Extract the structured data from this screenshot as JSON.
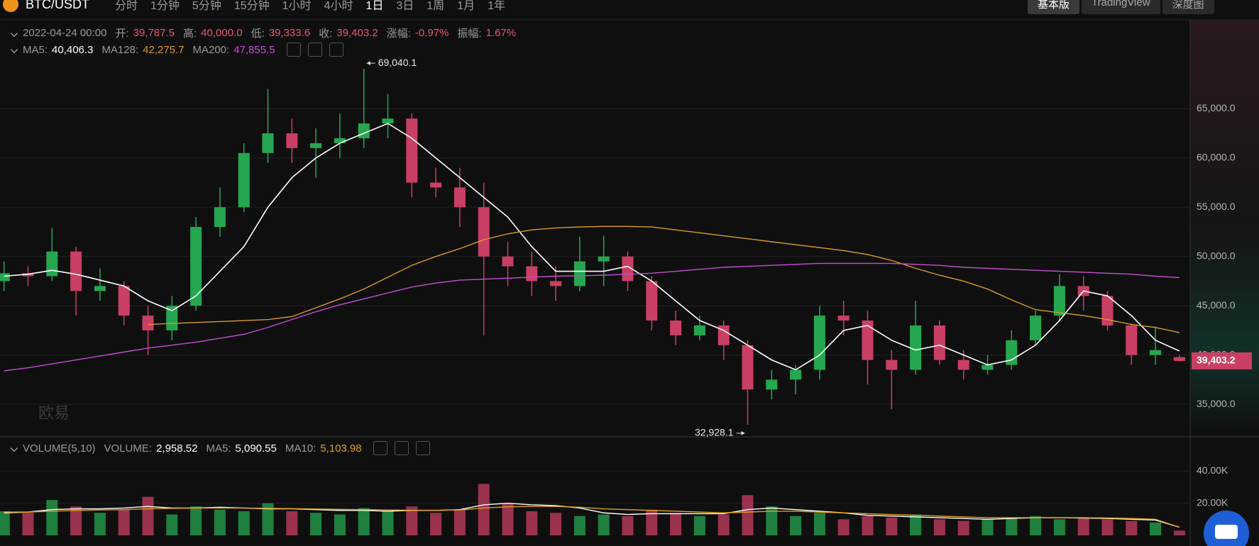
{
  "toolbar": {
    "symbol": "BTC/USDT",
    "intervals": [
      "分时",
      "1分钟",
      "5分钟",
      "15分钟",
      "1小时",
      "4小时",
      "1日",
      "3日",
      "1周",
      "1月",
      "1年"
    ],
    "views": [
      "基本版",
      "TradingView",
      "深度图"
    ]
  },
  "header": {
    "datetime": "2022-04-24 00:00",
    "fields": [
      {
        "label": "开:",
        "value": "39,787.5"
      },
      {
        "label": "高:",
        "value": "40,000.0"
      },
      {
        "label": "低:",
        "value": "39,333.6"
      },
      {
        "label": "收:",
        "value": "39,403.2"
      },
      {
        "label": "涨幅:",
        "value": "-0.97%"
      },
      {
        "label": "振幅:",
        "value": "1.67%"
      }
    ]
  },
  "watermark": "欧易",
  "chart_data": [
    {
      "type": "candlestick",
      "up_color": "#25a750",
      "down_color": "#ca3f64",
      "grid": true,
      "ylim": [
        31700,
        73800
      ],
      "yticks": [
        {
          "value": 35000,
          "label": "35,000.0"
        },
        {
          "value": 40000,
          "label": "40,000.0"
        },
        {
          "value": 45000,
          "label": "45,000.0"
        },
        {
          "value": 50000,
          "label": "50,000.0"
        },
        {
          "value": 55000,
          "label": "55,000.0"
        },
        {
          "value": 60000,
          "label": "60,000.0"
        },
        {
          "value": 65000,
          "label": "65,000.0"
        }
      ],
      "open": [
        47500,
        48300,
        48000,
        50500,
        46500,
        47000,
        44000,
        42500,
        45000,
        53000,
        55000,
        60500,
        62500,
        61000,
        61500,
        62000,
        63500,
        64000,
        57500,
        57000,
        55000,
        50000,
        49000,
        47500,
        47000,
        49500,
        50000,
        47500,
        43500,
        42000,
        43000,
        41000,
        36500,
        37500,
        38500,
        44000,
        43500,
        39500,
        38500,
        43000,
        39500,
        38500,
        39000,
        41500,
        44000,
        47000,
        46000,
        43000,
        40000,
        39787.5
      ],
      "high": [
        49500,
        49000,
        52900,
        51000,
        48800,
        47500,
        45000,
        46000,
        54000,
        57000,
        61500,
        67000,
        64000,
        63000,
        64500,
        69040.1,
        66500,
        64500,
        59000,
        59000,
        57500,
        51500,
        50500,
        49000,
        52000,
        52100,
        50500,
        48000,
        44500,
        44000,
        43500,
        41500,
        38500,
        39000,
        45000,
        45500,
        44500,
        40500,
        45500,
        43500,
        40500,
        40000,
        42500,
        44500,
        48200,
        48000,
        46500,
        43200,
        42900,
        40000
      ],
      "low": [
        46500,
        47000,
        47500,
        44000,
        45500,
        43000,
        40000,
        41500,
        44500,
        52000,
        54500,
        59500,
        59500,
        58000,
        60000,
        61000,
        62000,
        56000,
        56000,
        53000,
        42000,
        47000,
        46000,
        45500,
        46500,
        47000,
        46500,
        42500,
        41000,
        41500,
        39500,
        32928.1,
        35500,
        36000,
        37500,
        42000,
        37000,
        34500,
        38000,
        39000,
        37500,
        38000,
        38500,
        41000,
        43500,
        44500,
        42500,
        39000,
        39000,
        39333.6
      ],
      "close": [
        48300,
        48000,
        50500,
        46500,
        47000,
        44000,
        42500,
        45000,
        53000,
        55000,
        60500,
        62500,
        61000,
        61500,
        62000,
        63500,
        64000,
        57500,
        57000,
        55000,
        50000,
        49000,
        47500,
        47000,
        49500,
        50000,
        47500,
        43500,
        42000,
        43000,
        41000,
        36500,
        37500,
        38500,
        44000,
        43500,
        39500,
        38500,
        43000,
        39500,
        38500,
        39000,
        41500,
        44000,
        47000,
        46000,
        43000,
        40000,
        40500,
        39403.2
      ],
      "series": [
        {
          "name": "MA5:",
          "color": "#ffffff",
          "legend_value": "40,406.3",
          "values": [
            48000,
            48200,
            48600,
            48200,
            47600,
            47000,
            45500,
            44500,
            46000,
            48500,
            51000,
            55000,
            58000,
            60000,
            61500,
            62500,
            63500,
            62000,
            60000,
            58000,
            56000,
            54000,
            51000,
            48500,
            48500,
            48500,
            49000,
            47500,
            45500,
            43500,
            42500,
            41000,
            39500,
            38500,
            40000,
            42500,
            43000,
            41500,
            40500,
            41000,
            40000,
            39000,
            39500,
            41000,
            43500,
            46500,
            46000,
            44000,
            41500,
            40406.3
          ]
        },
        {
          "name": "MA128:",
          "color": "#d99a2b",
          "legend_value": "42,275.7",
          "values": [
            null,
            null,
            null,
            null,
            null,
            null,
            43100,
            43200,
            43300,
            43400,
            43500,
            43600,
            43900,
            44800,
            45700,
            46700,
            47900,
            49100,
            50000,
            50800,
            51700,
            52300,
            52700,
            52900,
            53000,
            53050,
            53050,
            53000,
            52700,
            52400,
            52100,
            51800,
            51500,
            51200,
            50900,
            50600,
            50200,
            49600,
            48800,
            48100,
            47500,
            46700,
            45600,
            44600,
            44300,
            44000,
            43600,
            43100,
            42800,
            42275.7
          ]
        },
        {
          "name": "MA200:",
          "color": "#c34fd1",
          "legend_value": "47,855.5",
          "values": [
            38400,
            38700,
            39100,
            39500,
            39900,
            40300,
            40700,
            41000,
            41300,
            41700,
            42100,
            42800,
            43600,
            44400,
            45100,
            45700,
            46300,
            46900,
            47300,
            47600,
            47700,
            47800,
            47900,
            48000,
            48050,
            48100,
            48200,
            48300,
            48500,
            48700,
            48900,
            49000,
            49100,
            49200,
            49300,
            49300,
            49300,
            49300,
            49200,
            49100,
            48900,
            48800,
            48700,
            48600,
            48500,
            48400,
            48300,
            48200,
            48000,
            47855.5
          ]
        }
      ],
      "annotations": [
        {
          "index": 15,
          "value": 69040.1,
          "label": "69,040.1",
          "side": "right"
        },
        {
          "index": 31,
          "value": 32928.1,
          "label": "32,928.1",
          "side": "left"
        }
      ],
      "last_price": {
        "value": 39403.2,
        "label": "39,403.2"
      }
    },
    {
      "type": "bar",
      "title": "VOLUME(5,10)",
      "ylim": [
        0,
        61300
      ],
      "grid": true,
      "yticks": [
        {
          "value": 20000,
          "label": "20.00K"
        },
        {
          "value": 40000,
          "label": "40.00K"
        }
      ],
      "series": [
        {
          "name": "VOLUME:",
          "kind": "bar",
          "legend_value": "2,958.52",
          "values": [
            15000,
            14000,
            22000,
            18000,
            14000,
            16000,
            24000,
            13000,
            18000,
            16000,
            15000,
            20000,
            15000,
            14000,
            13000,
            17000,
            15000,
            18000,
            14000,
            16000,
            32000,
            20000,
            15000,
            14000,
            12000,
            13000,
            12000,
            16000,
            14000,
            12000,
            13000,
            25000,
            18000,
            12000,
            14000,
            10000,
            12000,
            11000,
            13000,
            10000,
            9000,
            10000,
            11000,
            12000,
            10000,
            11000,
            10000,
            9000,
            8000,
            2958.52
          ]
        },
        {
          "name": "MA5:",
          "kind": "line",
          "color": "#ffffff",
          "legend_value": "5,090.55",
          "values": [
            14000,
            14500,
            16000,
            16500,
            16500,
            17000,
            18000,
            17000,
            17000,
            17500,
            17000,
            16500,
            16500,
            16000,
            15500,
            15500,
            15000,
            15500,
            15500,
            16000,
            19000,
            20000,
            19000,
            18500,
            17000,
            14000,
            13000,
            13500,
            13500,
            13500,
            13500,
            16000,
            17000,
            16000,
            15000,
            14000,
            12500,
            12000,
            11500,
            11000,
            10500,
            10000,
            10500,
            11000,
            11000,
            10800,
            10500,
            10000,
            9500,
            5090.55
          ]
        },
        {
          "name": "MA10:",
          "kind": "line",
          "color": "#e0a020",
          "legend_value": "5,103.98",
          "values": [
            14500,
            14500,
            15000,
            15500,
            15800,
            16000,
            16500,
            16800,
            17000,
            17000,
            17000,
            16800,
            16600,
            16400,
            16200,
            16000,
            15800,
            15600,
            15600,
            15800,
            17000,
            17800,
            18000,
            18000,
            17500,
            16500,
            16000,
            15500,
            15000,
            14500,
            14000,
            14500,
            15000,
            15000,
            14500,
            14000,
            13500,
            13000,
            12500,
            12000,
            11500,
            11000,
            11000,
            11000,
            11000,
            11000,
            10800,
            10500,
            10000,
            5103.98
          ]
        }
      ]
    }
  ]
}
